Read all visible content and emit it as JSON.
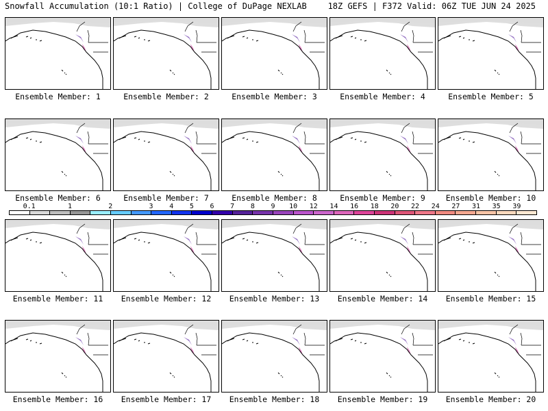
{
  "header": {
    "title_left": "Snowfall Accumulation (10:1 Ratio) | College of DuPage NEXLAB",
    "title_right": "18Z GEFS | F372 Valid: 06Z TUE JUN 24 2025"
  },
  "panels": [
    {
      "label": "Ensemble Member: 1"
    },
    {
      "label": "Ensemble Member: 2"
    },
    {
      "label": "Ensemble Member: 3"
    },
    {
      "label": "Ensemble Member: 4"
    },
    {
      "label": "Ensemble Member: 5"
    },
    {
      "label": "Ensemble Member: 6"
    },
    {
      "label": "Ensemble Member: 7"
    },
    {
      "label": "Ensemble Member: 8"
    },
    {
      "label": "Ensemble Member: 9"
    },
    {
      "label": "Ensemble Member: 10"
    },
    {
      "label": "Ensemble Member: 11"
    },
    {
      "label": "Ensemble Member: 12"
    },
    {
      "label": "Ensemble Member: 13"
    },
    {
      "label": "Ensemble Member: 14"
    },
    {
      "label": "Ensemble Member: 15"
    },
    {
      "label": "Ensemble Member: 16"
    },
    {
      "label": "Ensemble Member: 17"
    },
    {
      "label": "Ensemble Member: 18"
    },
    {
      "label": "Ensemble Member: 19"
    },
    {
      "label": "Ensemble Member: 20"
    }
  ],
  "colorbar": {
    "labels": [
      "0.1",
      "1",
      "2",
      "3",
      "4",
      "5",
      "6",
      "7",
      "8",
      "9",
      "10",
      "12",
      "14",
      "16",
      "18",
      "20",
      "22",
      "24",
      "27",
      "31",
      "35",
      "39"
    ],
    "colors": [
      "#ffffff",
      "#d9d9d9",
      "#bdbdbd",
      "#969696",
      "#99eeff",
      "#66ccff",
      "#4499ff",
      "#2266ff",
      "#1133ee",
      "#0000cc",
      "#3300aa",
      "#552299",
      "#7733aa",
      "#9944bb",
      "#bb55cc",
      "#cc66cc",
      "#dd66bb",
      "#dd4499",
      "#cc3377",
      "#dd5577",
      "#ee7788",
      "#f08a80",
      "#f5a890",
      "#f8c4a6",
      "#fbd9bd",
      "#fde8d2"
    ]
  }
}
